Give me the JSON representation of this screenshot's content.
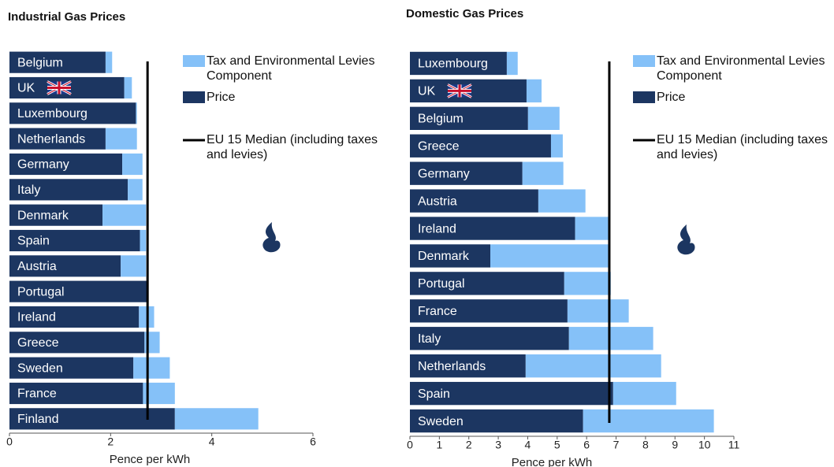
{
  "chart_data": [
    {
      "type": "bar",
      "orientation": "horizontal",
      "stacked": true,
      "title": "Industrial Gas Prices",
      "x_label": "Pence per kWh",
      "categories": [
        "Belgium",
        "UK",
        "Luxembourg",
        "Netherlands",
        "Germany",
        "Italy",
        "Denmark",
        "Spain",
        "Austria",
        "Portugal",
        "Ireland",
        "Greece",
        "Sweden",
        "France",
        "Finland"
      ],
      "series": [
        {
          "name": "Price",
          "color": "#1c3661",
          "values": [
            1.9,
            2.27,
            2.5,
            1.9,
            2.23,
            2.34,
            1.84,
            2.58,
            2.2,
            2.73,
            2.56,
            2.67,
            2.45,
            2.64,
            3.27
          ]
        },
        {
          "name": "Tax and Environmental Levies Component",
          "color": "#85c1f8",
          "values": [
            0.13,
            0.15,
            0.02,
            0.62,
            0.4,
            0.29,
            0.86,
            0.12,
            0.5,
            0.02,
            0.3,
            0.3,
            0.72,
            0.63,
            1.65
          ]
        }
      ],
      "reference_line": {
        "name": "EU 15 Median (including taxes and levies)",
        "value": 2.73,
        "color": "#000000"
      },
      "xlim": [
        0,
        6
      ],
      "xticks": [
        0,
        2,
        4,
        6
      ]
    },
    {
      "type": "bar",
      "orientation": "horizontal",
      "stacked": true,
      "title": "Domestic Gas Prices",
      "x_label": "Pence per kWh",
      "categories": [
        "Luxembourg",
        "UK",
        "Belgium",
        "Greece",
        "Germany",
        "Austria",
        "Ireland",
        "Denmark",
        "Portugal",
        "France",
        "Italy",
        "Netherlands",
        "Spain",
        "Sweden"
      ],
      "series": [
        {
          "name": "Price",
          "color": "#1c3661",
          "values": [
            3.29,
            3.96,
            4.01,
            4.79,
            3.82,
            4.36,
            5.61,
            2.73,
            5.24,
            5.35,
            5.4,
            3.93,
            6.9,
            5.88
          ]
        },
        {
          "name": "Tax and Environmental Levies Component",
          "color": "#85c1f8",
          "values": [
            0.37,
            0.51,
            1.07,
            0.4,
            1.39,
            1.6,
            1.13,
            4.01,
            1.58,
            2.08,
            2.86,
            4.6,
            2.14,
            4.44
          ]
        }
      ],
      "reference_line": {
        "name": "EU 15 Median (including taxes and levies)",
        "value": 6.77,
        "color": "#000000"
      },
      "xlim": [
        0,
        11
      ],
      "xticks": [
        0,
        1,
        2,
        3,
        4,
        5,
        6,
        7,
        8,
        9,
        10,
        11
      ]
    }
  ]
}
